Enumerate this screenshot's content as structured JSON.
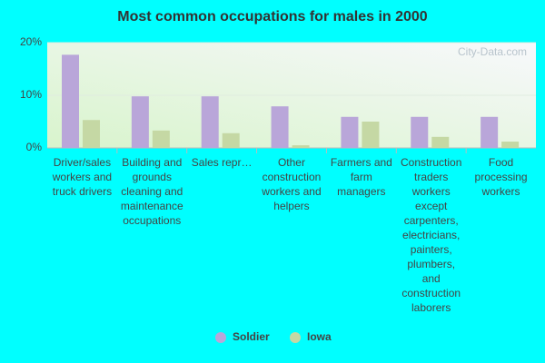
{
  "chart_data": {
    "type": "bar",
    "title": "Most common occupations for males in 2000",
    "watermark": "City-Data.com",
    "categories": [
      "Driver/sales workers and truck drivers",
      "Building and grounds cleaning and maintenance occupations",
      "Sales repr…",
      "Other construction workers and helpers",
      "Farmers and farm managers",
      "Construction traders workers except carpenters, electricians, painters, plumbers, and construction laborers",
      "Food processing workers"
    ],
    "series": [
      {
        "name": "Soldier",
        "color": "#b9a6d9",
        "values": [
          17.7,
          9.8,
          9.8,
          7.9,
          5.9,
          5.9,
          5.9
        ]
      },
      {
        "name": "Iowa",
        "color": "#c5d8a4",
        "values": [
          5.3,
          3.3,
          2.8,
          0.5,
          5.0,
          2.1,
          1.2
        ]
      }
    ],
    "ylim": [
      0,
      20
    ],
    "yticks": [
      {
        "value": 0,
        "label": "0%"
      },
      {
        "value": 10,
        "label": "10%"
      },
      {
        "value": 20,
        "label": "20%"
      }
    ],
    "grid": true,
    "legend": "bottom"
  }
}
